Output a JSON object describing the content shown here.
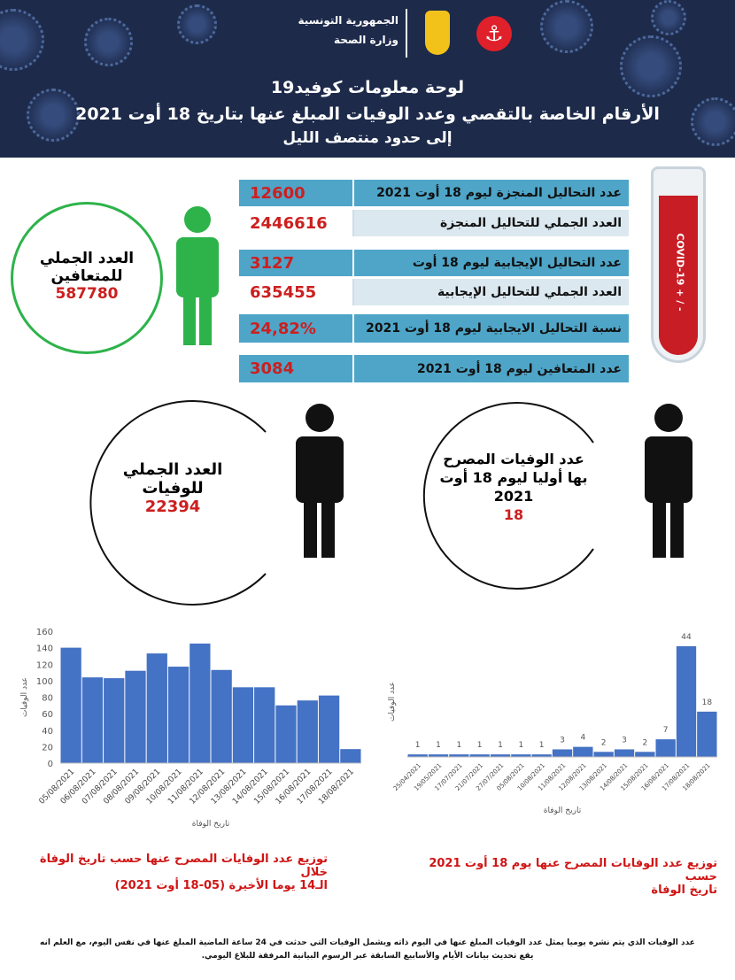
{
  "header": {
    "republic": "الجمهورية التونسية",
    "ministry": "وزارة الصحة",
    "title": "لوحة معلومات كوفيد19",
    "subtitle": "الأرقام الخاصة بالتقصي وعدد الوفيات المبلغ عنها بتاريخ 18 أوت 2021",
    "subtitle2": "إلى حدود منتصف الليل"
  },
  "stats": [
    {
      "label": "عدد التحاليل المنجزة ليوم 18 أوت 2021",
      "value": "12600"
    },
    {
      "label": "العدد الجملي للتحاليل المنجزة",
      "value": "2446616"
    },
    {
      "label": "عدد التحاليل الإيجابية ليوم 18 أوت",
      "value": "3127"
    },
    {
      "label": "العدد الجملي للتحاليل الإيجابية",
      "value": "635455"
    },
    {
      "label": "نسبة التحاليل الايجابية ليوم 18 أوت 2021",
      "value": "24,82%"
    },
    {
      "label": "عدد المتعافين ليوم 18 أوت 2021",
      "value": "3084"
    }
  ],
  "tube_label": "COVID-19 + / -",
  "recovered": {
    "line1": "العدد الجملي",
    "line2": "للمتعافين",
    "value": "587780"
  },
  "deaths_total": {
    "line1": "العدد الجملي",
    "line2": "للوفيات",
    "value": "22394"
  },
  "deaths_today": {
    "line1": "عدد الوفيات المصرح",
    "line2": "بها أوليا ليوم 18 أوت",
    "line3": "2021",
    "value": "18"
  },
  "colors": {
    "bar": "#4472c4",
    "red": "#cc1f1f",
    "green": "#2db34a",
    "table_dark": "#4ea5c8",
    "table_light": "#dbe8f0",
    "header": "#1d2a4a"
  },
  "chart_data": [
    {
      "type": "bar",
      "title": "توزيع عدد الوفايات المصرح عنها حسب تاريخ الوفاة خلال الـ14 يوما الأخيرة (05-18 أوت 2021)",
      "caption_line1": "توزيع عدد الوفايات المصرح عنها حسب تاريخ الوفاة خلال",
      "caption_line2": "الـ14 يوما الأخيرة (05-18 أوت 2021)",
      "xlabel": "تاريخ الوفاة",
      "ylabel": "عدد الوفيات",
      "ylim": [
        0,
        160
      ],
      "yticks": [
        0,
        20,
        40,
        60,
        80,
        100,
        120,
        140,
        160
      ],
      "categories": [
        "05/08/2021",
        "06/08/2021",
        "07/08/2021",
        "08/08/2021",
        "09/08/2021",
        "10/08/2021",
        "11/08/2021",
        "12/08/2021",
        "13/08/2021",
        "14/08/2021",
        "15/08/2021",
        "16/08/2021",
        "17/08/2021",
        "18/08/2021"
      ],
      "values": [
        140,
        104,
        103,
        112,
        133,
        117,
        145,
        113,
        92,
        92,
        70,
        76,
        82,
        17
      ]
    },
    {
      "type": "bar",
      "title": "توزيع عدد الوفايات المصرح عنها يوم 18 أوت 2021 حسب تاريخ الوفاة",
      "caption_line1": "توزيع عدد الوفايات المصرح عنها يوم 18 أوت 2021 حسب",
      "caption_line2": "تاريخ الوفاة",
      "xlabel": "تاريخ الوفاة",
      "ylabel": "عدد الوفيات",
      "ylim": [
        0,
        44
      ],
      "categories": [
        "25/04/2021",
        "19/05/2021",
        "17/07/2021",
        "21/07/2021",
        "27/07/2021",
        "05/08/2021",
        "10/08/2021",
        "11/08/2021",
        "12/08/2021",
        "13/08/2021",
        "14/08/2021",
        "15/08/2021",
        "16/08/2021",
        "17/08/2021",
        "18/08/2021"
      ],
      "values": [
        1,
        1,
        1,
        1,
        1,
        1,
        1,
        3,
        4,
        2,
        3,
        2,
        7,
        44,
        18
      ]
    }
  ],
  "footer": {
    "line1": "عدد الوفيات الذي يتم نشره يوميا يمثل عدد الوفيات المبلغ عنها في اليوم ذاته ويشمل الوفيات التي حدثت في 24 ساعة الماضية المبلغ عنها في نفس اليوم، مع العلم انه",
    "line2": "يقع تحديث بيانات الأيام والأسابيع السابقة عبر الرسوم البيانية المرفقة للبلاغ اليومي."
  }
}
